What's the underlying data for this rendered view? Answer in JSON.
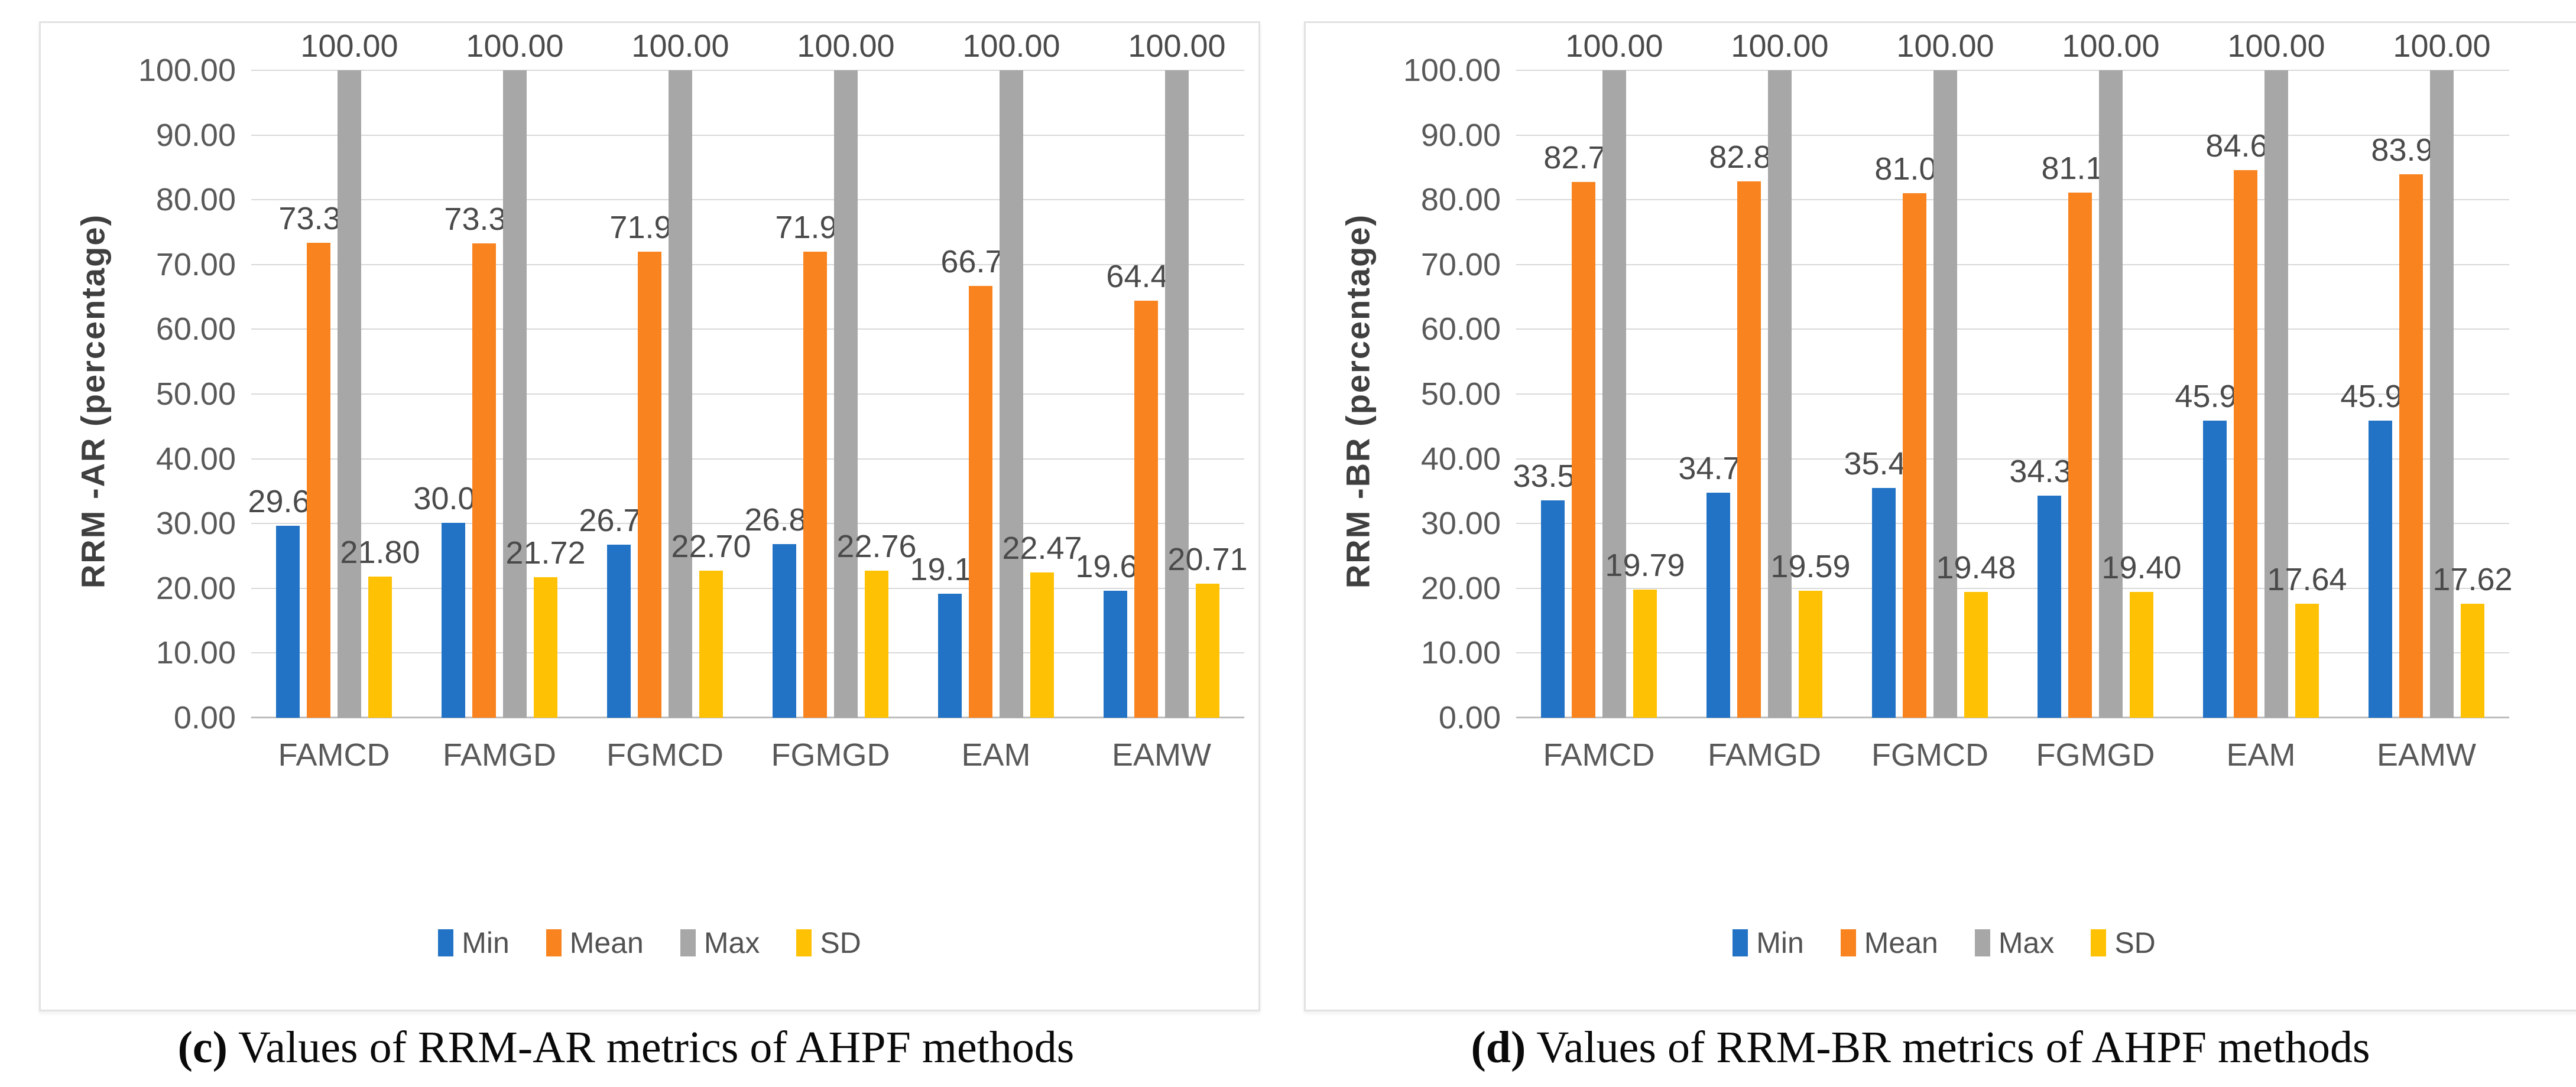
{
  "figure": {
    "legend_labels": [
      "Min",
      "Mean",
      "Max",
      "SD"
    ],
    "series_colors": {
      "Min": "#2273C5",
      "Mean": "#F8831F",
      "Max": "#A7A7A7",
      "SD": "#FFC103"
    },
    "grid_color": "#D9D9D9",
    "axis_text_color": "#595959"
  },
  "chart_data": [
    {
      "type": "bar",
      "panel_label": "(c)",
      "caption_text": "Values of RRM-AR metrics of AHPF methods",
      "ylabel": "RRM -AR (percentage)",
      "xlabel": "",
      "ylim": [
        0,
        100
      ],
      "ystep": 10,
      "grid": true,
      "legend_position": "bottom",
      "categories": [
        "FAMCD",
        "FAMGD",
        "FGMCD",
        "FGMGD",
        "EAM",
        "EAMW"
      ],
      "series": [
        {
          "name": "Min",
          "values": [
            29.67,
            30.07,
            26.71,
            26.86,
            19.19,
            19.61
          ]
        },
        {
          "name": "Mean",
          "values": [
            73.39,
            73.31,
            71.97,
            71.97,
            66.74,
            64.41
          ]
        },
        {
          "name": "Max",
          "values": [
            100.0,
            100.0,
            100.0,
            100.0,
            100.0,
            100.0
          ]
        },
        {
          "name": "SD",
          "values": [
            21.8,
            21.72,
            22.7,
            22.76,
            22.47,
            20.71
          ]
        }
      ]
    },
    {
      "type": "bar",
      "panel_label": "(d)",
      "caption_text": "Values of RRM-BR metrics of AHPF methods",
      "ylabel": "RRM -BR (percentage)",
      "xlabel": "",
      "ylim": [
        0,
        100
      ],
      "ystep": 10,
      "grid": true,
      "legend_position": "bottom",
      "categories": [
        "FAMCD",
        "FAMGD",
        "FGMCD",
        "FGMGD",
        "EAM",
        "EAMW"
      ],
      "series": [
        {
          "name": "Min",
          "values": [
            33.54,
            34.77,
            35.45,
            34.34,
            45.94,
            45.94
          ]
        },
        {
          "name": "Mean",
          "values": [
            82.73,
            82.85,
            81.03,
            81.11,
            84.6,
            83.96
          ]
        },
        {
          "name": "Max",
          "values": [
            100.0,
            100.0,
            100.0,
            100.0,
            100.0,
            100.0
          ]
        },
        {
          "name": "SD",
          "values": [
            19.79,
            19.59,
            19.48,
            19.4,
            17.64,
            17.62
          ]
        }
      ]
    }
  ]
}
